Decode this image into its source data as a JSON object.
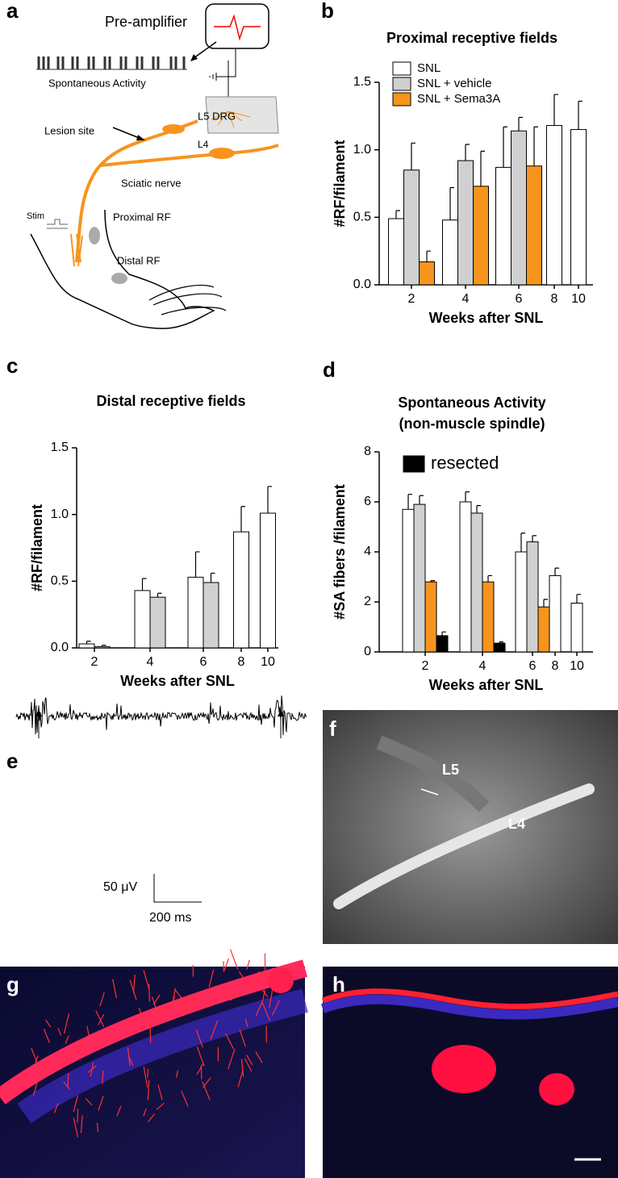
{
  "panels": [
    "a",
    "b",
    "c",
    "d",
    "e",
    "f",
    "g",
    "h"
  ],
  "diagram": {
    "preamp": "Pre-amplifier",
    "spontaneous": "Spontaneous Activity",
    "l5_drg": "L5 DRG",
    "lesion": "Lesion site",
    "l4": "L4",
    "sciatic": "Sciatic nerve",
    "stim": "Stim",
    "proximal": "Proximal RF",
    "distal": "Distal RF"
  },
  "trace": {
    "scale_v": "50 μV",
    "scale_t": "200 ms"
  },
  "photo": {
    "l5": "L5",
    "l4": "L4"
  },
  "chart_data": [
    {
      "type": "bar",
      "title": "Proximal receptive fields",
      "x_label": "Weeks after SNL",
      "y_label": "#RF/filament",
      "categories": [
        2,
        4,
        6,
        8,
        10
      ],
      "ylim": [
        0,
        1.5
      ],
      "yticks": [
        {
          "value": 0,
          "label": "0.0"
        },
        0.5,
        {
          "value": 1,
          "label": "1.0"
        },
        1.5
      ],
      "series": [
        {
          "name": "SNL",
          "color": "#ffffff",
          "values": [
            0.49,
            0.48,
            0.87,
            1.18,
            1.15
          ],
          "errors": [
            0.06,
            0.24,
            0.3,
            0.23,
            0.21
          ]
        },
        {
          "name": "SNL + vehicle",
          "color": "#d0d0d0",
          "values": [
            0.85,
            0.92,
            1.14,
            null,
            null
          ],
          "errors": [
            0.2,
            0.12,
            0.1,
            null,
            null
          ]
        },
        {
          "name": "SNL + Sema3A",
          "color": "#f7941d",
          "values": [
            0.17,
            0.73,
            0.88,
            null,
            null
          ],
          "errors": [
            0.08,
            0.26,
            0.29,
            null,
            null
          ]
        }
      ]
    },
    {
      "type": "bar",
      "title": "Distal receptive fields",
      "x_label": "Weeks after SNL",
      "y_label": "#RF/filament",
      "categories": [
        2,
        4,
        6,
        8,
        10
      ],
      "ylim": [
        0,
        1.5
      ],
      "yticks": [
        {
          "value": 0,
          "label": "0.0"
        },
        0.5,
        {
          "value": 1,
          "label": "1.0"
        },
        1.5
      ],
      "series": [
        {
          "color": "#ffffff",
          "values": [
            0.03,
            0.43,
            0.53,
            0.87,
            1.01
          ],
          "errors": [
            0.02,
            0.09,
            0.19,
            0.19,
            0.2
          ]
        },
        {
          "color": "#d0d0d0",
          "values": [
            0.01,
            0.38,
            0.49,
            null,
            null
          ],
          "errors": [
            0.01,
            0.03,
            0.07,
            null,
            null
          ]
        }
      ]
    },
    {
      "type": "bar",
      "title": "Spontaneous Activity",
      "subtitle": "(non-muscle spindle)",
      "x_label": "Weeks after SNL",
      "y_label": "#SA fibers /filament",
      "categories": [
        2,
        4,
        6,
        8,
        10
      ],
      "ylim": [
        0,
        8
      ],
      "yticks": [
        0,
        2,
        4,
        6,
        8
      ],
      "series": [
        {
          "color": "#ffffff",
          "values": [
            5.7,
            6.0,
            4.0,
            3.05,
            1.95
          ],
          "errors": [
            0.6,
            0.4,
            0.75,
            0.3,
            0.35
          ]
        },
        {
          "color": "#d0d0d0",
          "values": [
            5.9,
            5.55,
            4.4,
            null,
            null
          ],
          "errors": [
            0.35,
            0.3,
            0.25,
            null,
            null
          ]
        },
        {
          "color": "#f7941d",
          "values": [
            2.8,
            2.8,
            1.8,
            null,
            null
          ],
          "errors": [
            0.05,
            0.25,
            0.3,
            null,
            null
          ]
        },
        {
          "name": "resected",
          "color": "#000000",
          "values": [
            0.65,
            0.35,
            null,
            null,
            null
          ],
          "errors": [
            0.15,
            0.05,
            null,
            null,
            null
          ]
        }
      ]
    }
  ]
}
